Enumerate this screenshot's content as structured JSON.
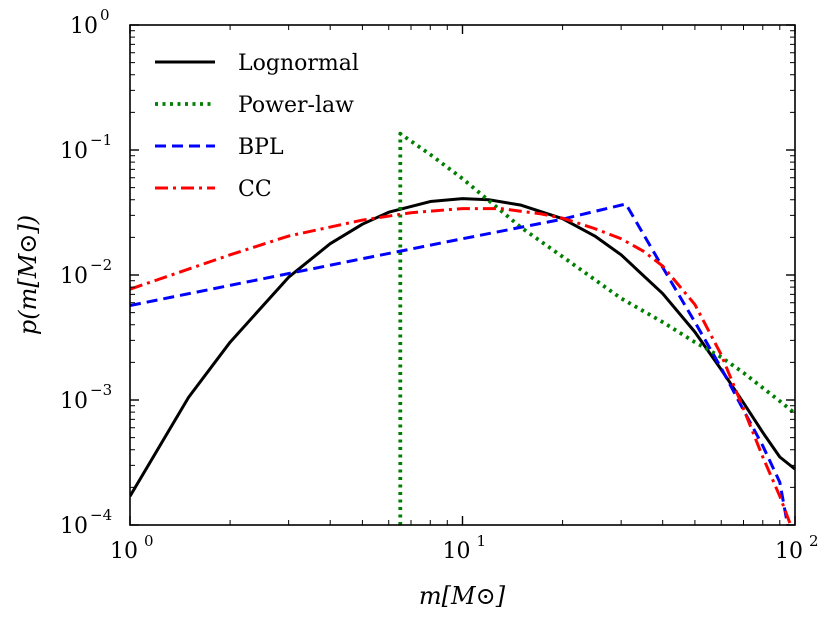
{
  "chart_data": {
    "type": "line",
    "xscale": "log",
    "yscale": "log",
    "xlim": [
      1,
      100
    ],
    "ylim": [
      0.0001,
      1
    ],
    "xlabel": "m[M⊙]",
    "ylabel": "p(m[M⊙])",
    "x_ticks": [
      {
        "base": "10",
        "exp": "0",
        "value": 1
      },
      {
        "base": "10",
        "exp": "1",
        "value": 10
      },
      {
        "base": "10",
        "exp": "2",
        "value": 100
      }
    ],
    "y_ticks": [
      {
        "base": "10",
        "exp": "−4",
        "value": 0.0001
      },
      {
        "base": "10",
        "exp": "−3",
        "value": 0.001
      },
      {
        "base": "10",
        "exp": "−2",
        "value": 0.01
      },
      {
        "base": "10",
        "exp": "−1",
        "value": 0.1
      },
      {
        "base": "10",
        "exp": "0",
        "value": 1
      }
    ],
    "legend_position": "top-left",
    "series": [
      {
        "name": "Lognormal",
        "color": "#000000",
        "dash": "solid",
        "x": [
          1,
          1.5,
          2,
          3,
          4,
          5,
          6,
          8,
          10,
          12,
          15,
          20,
          25,
          30,
          40,
          50,
          60,
          70,
          80,
          90,
          100
        ],
        "y": [
          0.00017,
          0.00105,
          0.0029,
          0.0096,
          0.0178,
          0.0255,
          0.0318,
          0.0387,
          0.0408,
          0.04,
          0.0362,
          0.0282,
          0.0205,
          0.0145,
          0.0071,
          0.0035,
          0.00175,
          0.00095,
          0.00055,
          0.00035,
          0.00028
        ]
      },
      {
        "name": "Power-law",
        "color": "#008000",
        "dash": "dotted",
        "x": [
          6.5,
          6.5,
          6.5,
          8,
          10,
          15,
          20,
          30,
          40,
          50,
          60,
          70,
          80,
          90,
          100
        ],
        "y": [
          0.0001,
          0.003,
          0.135,
          0.092,
          0.059,
          0.024,
          0.014,
          0.0065,
          0.0042,
          0.0029,
          0.0022,
          0.00165,
          0.00125,
          0.00098,
          0.00078
        ]
      },
      {
        "name": "BPL",
        "color": "#0000ff",
        "dash": "dashed",
        "x": [
          1,
          5,
          10,
          20,
          31,
          40,
          50,
          60,
          70,
          80,
          90,
          95
        ],
        "y": [
          0.0057,
          0.0135,
          0.0195,
          0.028,
          0.037,
          0.0115,
          0.0042,
          0.0018,
          0.00083,
          0.00043,
          0.00022,
          0.0001
        ]
      },
      {
        "name": "CC",
        "color": "#ff0000",
        "dash": "dashdot",
        "x": [
          1,
          2,
          3,
          5,
          7,
          10,
          13,
          17,
          20,
          25,
          30,
          35,
          40,
          50,
          60,
          70,
          80,
          90,
          97
        ],
        "y": [
          0.0077,
          0.0145,
          0.0205,
          0.0275,
          0.0315,
          0.034,
          0.034,
          0.031,
          0.0285,
          0.0235,
          0.0195,
          0.0155,
          0.0118,
          0.0058,
          0.0023,
          0.00085,
          0.00035,
          0.00017,
          0.0001
        ]
      }
    ]
  }
}
